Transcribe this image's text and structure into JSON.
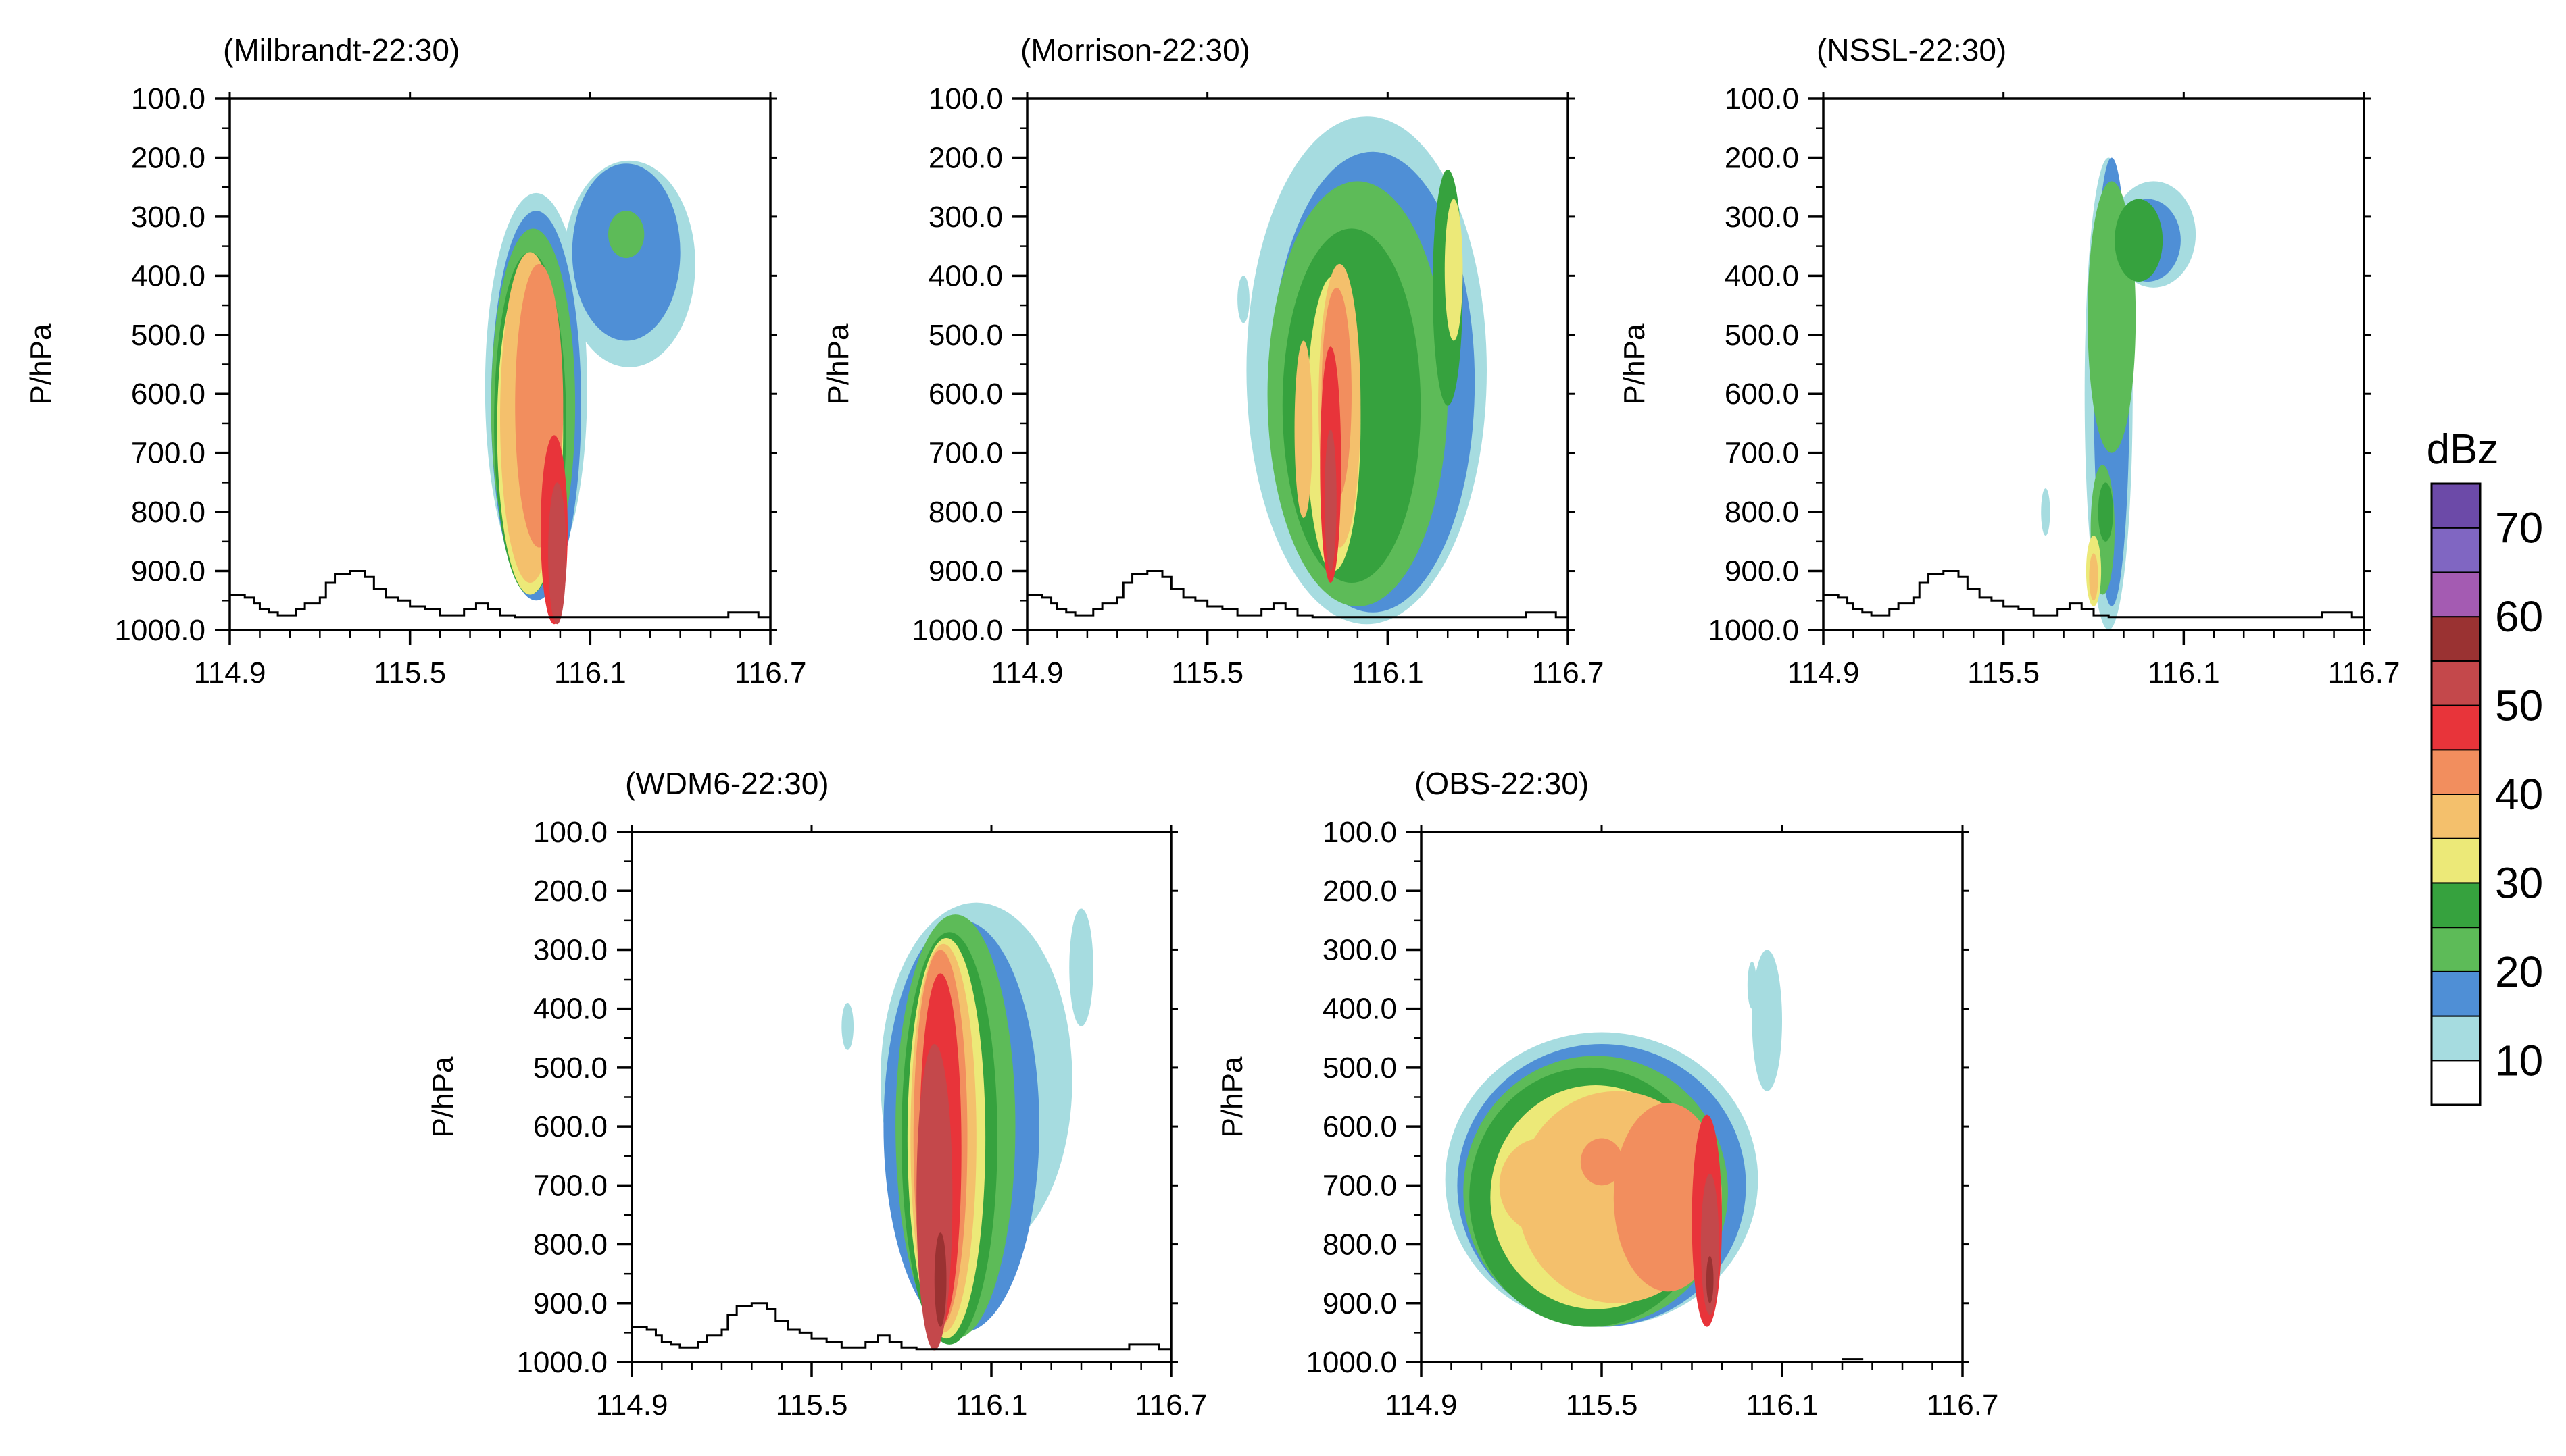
{
  "chart_data": [
    {
      "type": "contour",
      "title": "(Milbrandt-22:30)",
      "ylabel": "P/hPa",
      "xlabel": "",
      "x_ticks": [
        "114.9",
        "115.5",
        "116.1",
        "116.7"
      ],
      "y_ticks": [
        "100.0",
        "200.0",
        "300.0",
        "400.0",
        "500.0",
        "600.0",
        "700.0",
        "800.0",
        "900.0",
        "1000.0"
      ],
      "xlim": [
        114.9,
        116.7
      ],
      "ylim": [
        1000,
        100
      ],
      "max_dbz": 50
    },
    {
      "type": "contour",
      "title": "(Morrison-22:30)",
      "ylabel": "P/hPa",
      "xlabel": "",
      "x_ticks": [
        "114.9",
        "115.5",
        "116.1",
        "116.7"
      ],
      "y_ticks": [
        "100.0",
        "200.0",
        "300.0",
        "400.0",
        "500.0",
        "600.0",
        "700.0",
        "800.0",
        "900.0",
        "1000.0"
      ],
      "xlim": [
        114.9,
        116.7
      ],
      "ylim": [
        1000,
        100
      ],
      "max_dbz": 50
    },
    {
      "type": "contour",
      "title": "(NSSL-22:30)",
      "ylabel": "P/hPa",
      "xlabel": "",
      "x_ticks": [
        "114.9",
        "115.5",
        "116.1",
        "116.7"
      ],
      "y_ticks": [
        "100.0",
        "200.0",
        "300.0",
        "400.0",
        "500.0",
        "600.0",
        "700.0",
        "800.0",
        "900.0",
        "1000.0"
      ],
      "xlim": [
        114.9,
        116.7
      ],
      "ylim": [
        1000,
        100
      ],
      "max_dbz": 35
    },
    {
      "type": "contour",
      "title": "(WDM6-22:30)",
      "ylabel": "P/hPa",
      "xlabel": "",
      "x_ticks": [
        "114.9",
        "115.5",
        "116.1",
        "116.7"
      ],
      "y_ticks": [
        "100.0",
        "200.0",
        "300.0",
        "400.0",
        "500.0",
        "600.0",
        "700.0",
        "800.0",
        "900.0",
        "1000.0"
      ],
      "xlim": [
        114.9,
        116.7
      ],
      "ylim": [
        1000,
        100
      ],
      "max_dbz": 55
    },
    {
      "type": "contour",
      "title": "(OBS-22:30)",
      "ylabel": "P/hPa",
      "xlabel": "",
      "x_ticks": [
        "114.9",
        "115.5",
        "116.1",
        "116.7"
      ],
      "y_ticks": [
        "100.0",
        "200.0",
        "300.0",
        "400.0",
        "500.0",
        "600.0",
        "700.0",
        "800.0",
        "900.0",
        "1000.0"
      ],
      "xlim": [
        114.9,
        116.7
      ],
      "ylim": [
        1000,
        100
      ],
      "max_dbz": 55
    }
  ],
  "colorbar": {
    "title": "dBz",
    "labels": [
      "10",
      "20",
      "30",
      "40",
      "50",
      "60",
      "70"
    ],
    "levels": [
      5,
      10,
      15,
      20,
      25,
      30,
      35,
      40,
      45,
      50,
      55,
      60,
      65,
      70,
      75
    ],
    "colors": [
      "#ffffff",
      "#a6dce0",
      "#4f8fd6",
      "#5dbb58",
      "#36a23e",
      "#ece978",
      "#f4c06c",
      "#f28e5e",
      "#e8343a",
      "#c4484b",
      "#9a3232",
      "#a45bb2",
      "#8066c2",
      "#6c4aa8"
    ]
  }
}
